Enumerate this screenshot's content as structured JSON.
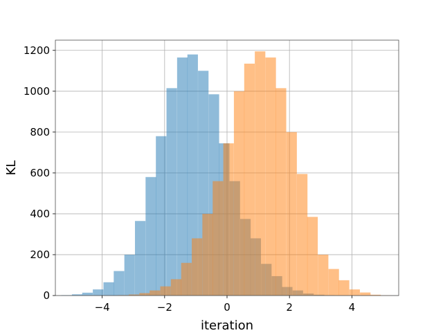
{
  "chart_data": {
    "type": "bar",
    "title": "",
    "xlabel": "iteration",
    "ylabel": "KL",
    "xlim": [
      -5.5,
      5.5
    ],
    "ylim": [
      0,
      1250
    ],
    "grid": true,
    "legend": "none",
    "x_ticks": [
      -4,
      -2,
      0,
      2,
      4
    ],
    "x_tick_labels": [
      "−4",
      "−2",
      "0",
      "2",
      "4"
    ],
    "y_ticks": [
      0,
      200,
      400,
      600,
      800,
      1000,
      1200
    ],
    "y_tick_labels": [
      "0",
      "200",
      "400",
      "600",
      "800",
      "1000",
      "1200"
    ],
    "bin_width": 0.337,
    "series": [
      {
        "color": "#1f77b4",
        "opacity": 0.5,
        "bin_starts": [
          -5.31,
          -4.97,
          -4.64,
          -4.3,
          -3.96,
          -3.63,
          -3.29,
          -2.95,
          -2.61,
          -2.28,
          -1.94,
          -1.6,
          -1.27,
          -0.93,
          -0.59,
          -0.26,
          0.08,
          0.42,
          0.75,
          1.09,
          1.43,
          1.76,
          2.1,
          2.44,
          2.78,
          3.11,
          3.45
        ],
        "values": [
          2,
          6,
          14,
          30,
          65,
          120,
          200,
          365,
          580,
          780,
          1015,
          1165,
          1180,
          1100,
          985,
          745,
          560,
          375,
          280,
          155,
          95,
          42,
          25,
          10,
          4,
          2,
          1
        ]
      },
      {
        "color": "#ff7f0e",
        "opacity": 0.5,
        "bin_starts": [
          -3.49,
          -3.15,
          -2.81,
          -2.48,
          -2.14,
          -1.8,
          -1.47,
          -1.13,
          -0.79,
          -0.46,
          -0.12,
          0.22,
          0.55,
          0.89,
          1.23,
          1.56,
          1.9,
          2.24,
          2.57,
          2.91,
          3.25,
          3.58,
          3.92,
          4.26,
          4.59,
          4.93
        ],
        "values": [
          2,
          5,
          12,
          25,
          45,
          80,
          160,
          280,
          400,
          560,
          745,
          1000,
          1135,
          1195,
          1165,
          1015,
          800,
          595,
          385,
          200,
          130,
          75,
          30,
          15,
          4,
          1
        ]
      }
    ]
  }
}
